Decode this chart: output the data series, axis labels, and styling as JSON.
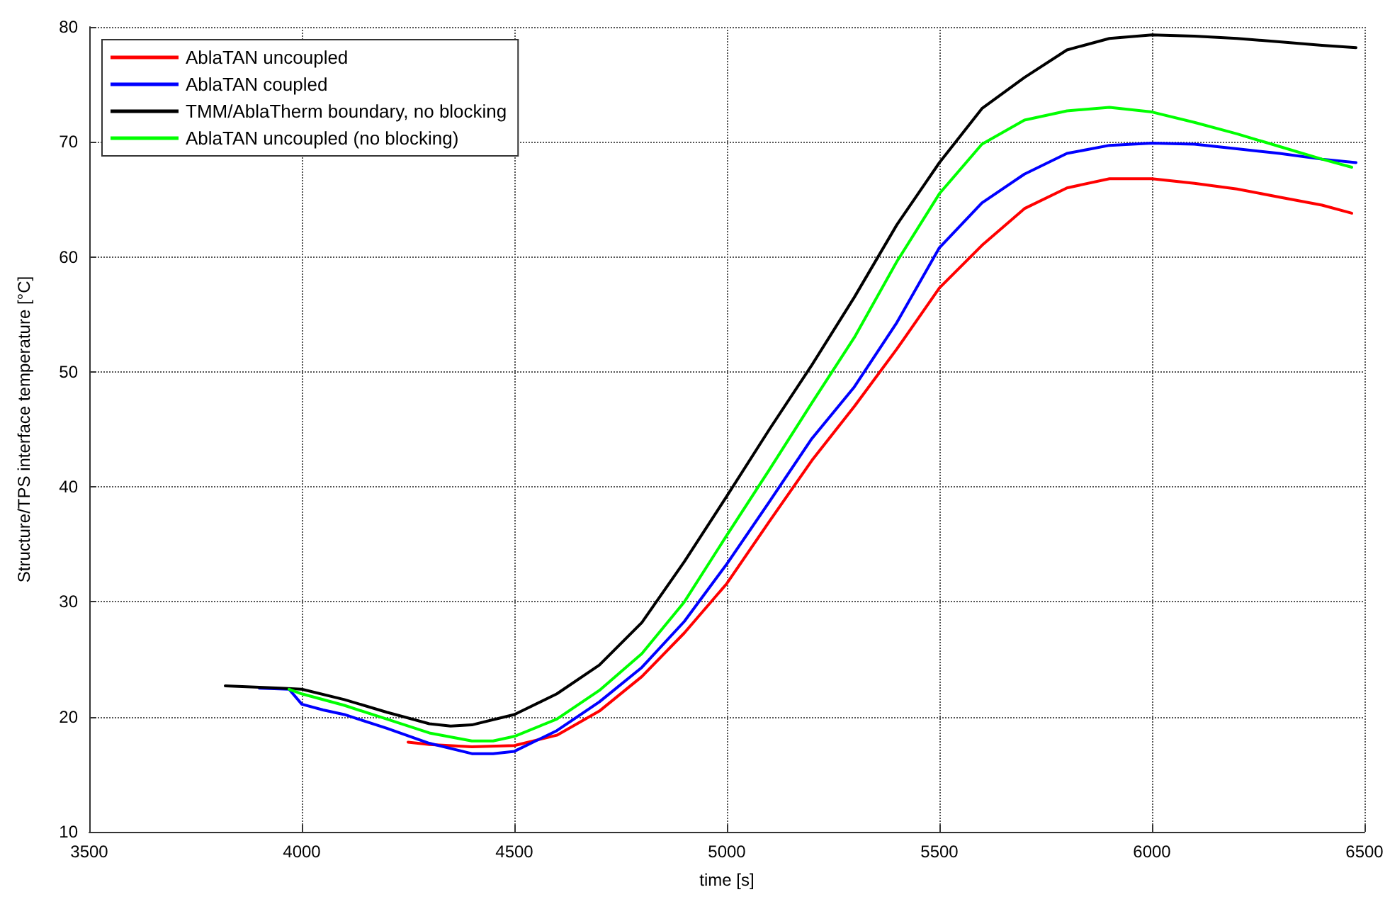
{
  "chart_data": {
    "type": "line",
    "xlabel": "time [s]",
    "ylabel": "Structure/TPS interface temperature [°C]",
    "xlim": [
      3500,
      6500
    ],
    "xticks": [
      3500,
      4000,
      4500,
      5000,
      5500,
      6000,
      6500
    ],
    "ylim": [
      10,
      80
    ],
    "yticks": [
      10,
      20,
      30,
      40,
      50,
      60,
      70,
      80
    ],
    "grid": true,
    "legend": "top left",
    "marker": "none",
    "line_style": "solid",
    "series": [
      {
        "name": "AblaTAN uncoupled",
        "color": "#ff0000",
        "x": [
          4250,
          4300,
          4400,
          4500,
          4600,
          4700,
          4800,
          4900,
          5000,
          5100,
          5200,
          5300,
          5400,
          5500,
          5600,
          5700,
          5800,
          5900,
          6000,
          6100,
          6200,
          6300,
          6400,
          6470
        ],
        "values": [
          17.8,
          17.6,
          17.4,
          17.5,
          18.4,
          20.5,
          23.5,
          27.3,
          31.6,
          37,
          42.3,
          47,
          52,
          57.3,
          61,
          64.2,
          66,
          66.8,
          66.8,
          66.4,
          65.9,
          65.2,
          64.5,
          63.8
        ]
      },
      {
        "name": "AblaTAN coupled",
        "color": "#0000ff",
        "x": [
          3900,
          3970,
          4000,
          4050,
          4100,
          4200,
          4300,
          4400,
          4450,
          4500,
          4600,
          4700,
          4800,
          4900,
          5000,
          5100,
          5200,
          5300,
          5400,
          5500,
          5600,
          5700,
          5800,
          5900,
          6000,
          6100,
          6200,
          6300,
          6400,
          6480
        ],
        "values": [
          22.5,
          22.4,
          21.1,
          20.6,
          20.2,
          19,
          17.7,
          16.8,
          16.8,
          17,
          18.8,
          21.3,
          24.3,
          28.3,
          33.3,
          38.7,
          44.2,
          48.7,
          54.3,
          60.8,
          64.7,
          67.2,
          69,
          69.7,
          69.9,
          69.8,
          69.4,
          69,
          68.5,
          68.2
        ]
      },
      {
        "name": "TMM/AblaTherm boundary, no blocking",
        "color": "#000000",
        "x": [
          3820,
          3950,
          4000,
          4100,
          4200,
          4300,
          4350,
          4400,
          4500,
          4600,
          4700,
          4800,
          4900,
          5000,
          5100,
          5200,
          5300,
          5400,
          5500,
          5600,
          5700,
          5800,
          5900,
          6000,
          6100,
          6200,
          6300,
          6400,
          6480
        ],
        "values": [
          22.7,
          22.5,
          22.4,
          21.5,
          20.4,
          19.4,
          19.2,
          19.3,
          20.2,
          22,
          24.5,
          28.2,
          33.5,
          39.2,
          45,
          50.6,
          56.5,
          62.8,
          68.2,
          72.9,
          75.6,
          78,
          79,
          79.3,
          79.2,
          79,
          78.7,
          78.4,
          78.2
        ]
      },
      {
        "name": "AblaTAN uncoupled (no blocking)",
        "color": "#00ff00",
        "x": [
          3970,
          4000,
          4100,
          4200,
          4300,
          4400,
          4450,
          4500,
          4600,
          4700,
          4800,
          4900,
          5000,
          5100,
          5200,
          5300,
          5400,
          5500,
          5600,
          5700,
          5800,
          5900,
          6000,
          6100,
          6200,
          6300,
          6400,
          6470
        ],
        "values": [
          22.4,
          22,
          21,
          19.8,
          18.6,
          17.9,
          17.9,
          18.3,
          19.8,
          22.3,
          25.5,
          30,
          35.8,
          41.5,
          47.3,
          53,
          59.6,
          65.5,
          69.8,
          71.9,
          72.7,
          73,
          72.6,
          71.7,
          70.7,
          69.6,
          68.5,
          67.8
        ]
      }
    ]
  }
}
